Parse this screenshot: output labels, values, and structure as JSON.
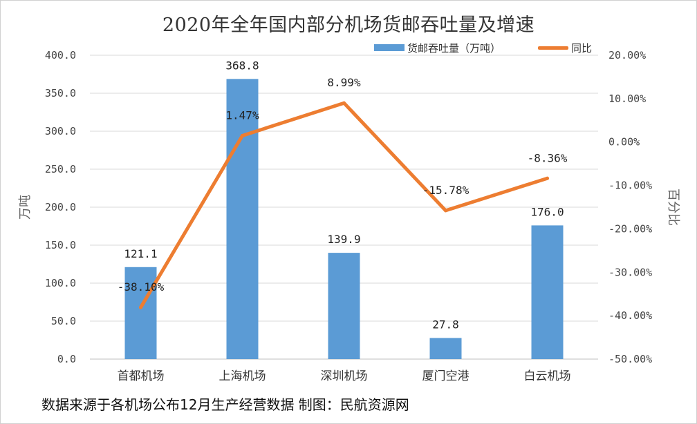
{
  "chart_data": {
    "type": "bar",
    "title": "2020年全年国内部分机场货邮吞吐量及增速",
    "categories": [
      "首都机场",
      "上海机场",
      "深圳机场",
      "厦门空港",
      "白云机场"
    ],
    "series": [
      {
        "name": "货邮吞吐量（万吨）",
        "type": "bar",
        "axis": "left",
        "color": "#5b9bd5",
        "values": [
          121.1,
          368.8,
          139.9,
          27.8,
          176.0
        ],
        "labels": [
          "121.1",
          "368.8",
          "139.9",
          "27.8",
          "176.0"
        ]
      },
      {
        "name": "同比",
        "type": "line",
        "axis": "right",
        "color": "#ed7d31",
        "values": [
          -38.1,
          1.47,
          8.99,
          -15.78,
          -8.36
        ],
        "labels": [
          "-38.10%",
          "1.47%",
          "8.99%",
          "-15.78%",
          "-8.36%"
        ]
      }
    ],
    "y_left": {
      "label": "万吨",
      "range": [
        0,
        400
      ],
      "ticks": [
        "0.0",
        "50.0",
        "100.0",
        "150.0",
        "200.0",
        "250.0",
        "300.0",
        "350.0",
        "400.0"
      ]
    },
    "y_right": {
      "label": "百分比",
      "range": [
        -50,
        20
      ],
      "ticks": [
        "-50.00%",
        "-40.00%",
        "-30.00%",
        "-20.00%",
        "-10.00%",
        "0.00%",
        "10.00%",
        "20.00%"
      ]
    },
    "grid": true,
    "legend": "top-right"
  },
  "footer": "数据来源于各机场公布12月生产经营数据   制图：民航资源网"
}
